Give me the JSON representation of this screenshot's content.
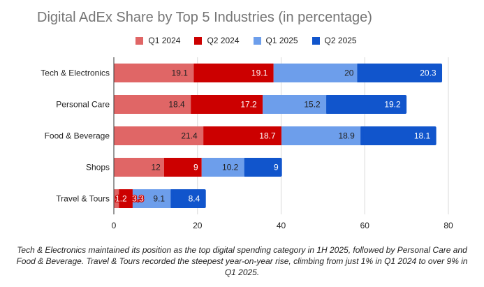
{
  "chart_data": {
    "type": "bar",
    "orientation": "horizontal",
    "stacked": true,
    "title": "Digital AdEx Share by Top 5 Industries (in percentage)",
    "xlabel": "",
    "ylabel": "",
    "xlim": [
      0,
      80
    ],
    "x_ticks": [
      "0",
      "20",
      "40",
      "60",
      "80"
    ],
    "grid": true,
    "legend_position": "top-center",
    "categories": [
      "Tech & Electronics",
      "Personal Care",
      "Food & Beverage",
      "Shops",
      "Travel & Tours"
    ],
    "series": [
      {
        "name": "Q1 2024",
        "color": "#e06666",
        "label_color": "#222222",
        "values": [
          19.1,
          18.4,
          21.4,
          12,
          1.2
        ]
      },
      {
        "name": "Q2 2024",
        "color": "#cc0000",
        "label_color": "#ffffff",
        "values": [
          19.1,
          17.2,
          18.7,
          9,
          3.3
        ]
      },
      {
        "name": "Q1 2025",
        "color": "#6d9eeb",
        "label_color": "#222222",
        "values": [
          20,
          15.2,
          18.9,
          10.2,
          9.1
        ]
      },
      {
        "name": "Q2 2025",
        "color": "#1155cc",
        "label_color": "#ffffff",
        "values": [
          20.3,
          19.2,
          18.1,
          9,
          8.4
        ]
      }
    ]
  },
  "caption": "Tech & Electronics maintained its position as the top digital spending category in 1H 2025, followed by Personal Care and Food & Beverage. Travel & Tours recorded the steepest year-on-year rise, climbing from just 1% in Q1 2024 to over 9% in Q1 2025."
}
